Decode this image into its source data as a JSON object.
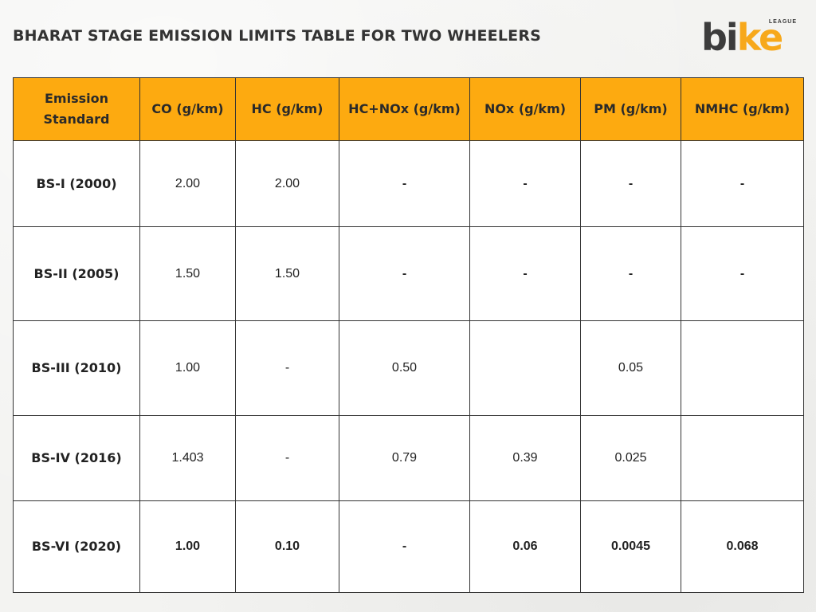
{
  "title": "BHARAT STAGE EMISSION LIMITS TABLE FOR TWO WHEELERS",
  "logo": {
    "part1": "bi",
    "part2": "ke",
    "league": "LEAGUE"
  },
  "colors": {
    "header_bg": "#fdaa10",
    "logo_accent": "#f7a81b",
    "logo_dark": "#3c3c3c"
  },
  "table": {
    "headers": [
      "Emission Standard",
      "CO (g/km)",
      "HC (g/km)",
      "HC+NOx (g/km)",
      "NOx (g/km)",
      "PM (g/km)",
      "NMHC (g/km)"
    ],
    "rows": [
      [
        "BS-I (2000)",
        "2.00",
        "2.00",
        "-",
        "-",
        "-",
        "-"
      ],
      [
        "BS-II (2005)",
        "1.50",
        "1.50",
        "-",
        "-",
        "-",
        "-"
      ],
      [
        "BS-III (2010)",
        "1.00",
        "-",
        "0.50",
        "",
        "0.05",
        ""
      ],
      [
        "BS-IV (2016)",
        "1.403",
        "-",
        "0.79",
        "0.39",
        "0.025",
        ""
      ],
      [
        "BS-VI (2020)",
        "1.00",
        "0.10",
        "-",
        "0.06",
        "0.0045",
        "0.068"
      ]
    ]
  }
}
